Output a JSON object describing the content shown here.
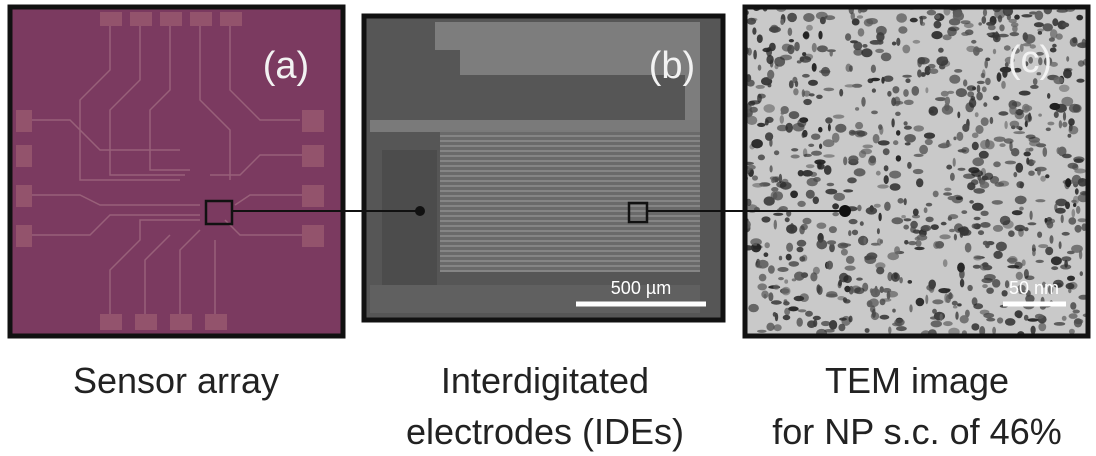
{
  "panels": [
    {
      "label": "(a)",
      "caption": [
        "Sensor array"
      ]
    },
    {
      "label": "(b)",
      "scale_bar": "500 µm",
      "caption": [
        "Interdigitated",
        "electrodes (IDEs)"
      ]
    },
    {
      "label": "(c)",
      "scale_bar": "50 nm",
      "caption": [
        "TEM image",
        "for NP s.c. of 46%"
      ]
    }
  ]
}
